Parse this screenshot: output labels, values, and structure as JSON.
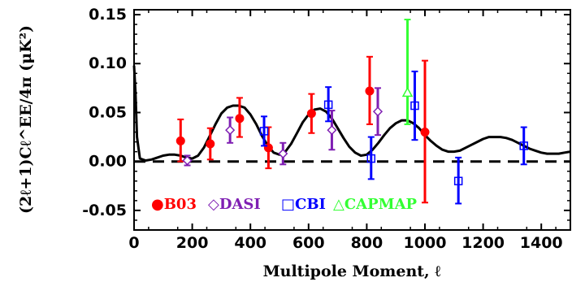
{
  "chart_data": {
    "type": "scatter",
    "xlabel": "Multipole Moment, ℓ",
    "ylabel": "(2ℓ+1)Cℓ^EE/4π (μK²)",
    "xlim": [
      0,
      1500
    ],
    "ylim": [
      -0.07,
      0.155
    ],
    "x_ticks": [
      "0",
      "200",
      "400",
      "600",
      "800",
      "1000",
      "1200",
      "1400"
    ],
    "y_ticks": [
      "0.15",
      "0.10",
      "0.05",
      "0.00",
      "-0.05"
    ],
    "zero_line": "dashed",
    "model_curve": "solid",
    "series": [
      {
        "name": "B03",
        "color": "#ff0000",
        "marker": "filled-circle",
        "points": [
          {
            "x": 160,
            "y": 0.021,
            "lo": 0.0,
            "hi": 0.043
          },
          {
            "x": 262,
            "y": 0.018,
            "lo": 0.002,
            "hi": 0.034
          },
          {
            "x": 363,
            "y": 0.044,
            "lo": 0.025,
            "hi": 0.065
          },
          {
            "x": 462,
            "y": 0.014,
            "lo": -0.007,
            "hi": 0.035
          },
          {
            "x": 610,
            "y": 0.049,
            "lo": 0.029,
            "hi": 0.069
          },
          {
            "x": 810,
            "y": 0.072,
            "lo": 0.038,
            "hi": 0.107
          },
          {
            "x": 1000,
            "y": 0.03,
            "lo": -0.042,
            "hi": 0.103
          }
        ]
      },
      {
        "name": "DASI",
        "color": "#7f1fb3",
        "marker": "diamond",
        "points": [
          {
            "x": 183,
            "y": 0.001,
            "lo": -0.004,
            "hi": 0.006
          },
          {
            "x": 330,
            "y": 0.032,
            "lo": 0.019,
            "hi": 0.045
          },
          {
            "x": 512,
            "y": 0.008,
            "lo": -0.003,
            "hi": 0.019
          },
          {
            "x": 680,
            "y": 0.032,
            "lo": 0.012,
            "hi": 0.052
          },
          {
            "x": 838,
            "y": 0.051,
            "lo": 0.027,
            "hi": 0.075
          }
        ]
      },
      {
        "name": "CBI",
        "color": "#0000ff",
        "marker": "open-square",
        "points": [
          {
            "x": 447,
            "y": 0.031,
            "lo": 0.016,
            "hi": 0.046
          },
          {
            "x": 668,
            "y": 0.058,
            "lo": 0.041,
            "hi": 0.076
          },
          {
            "x": 815,
            "y": 0.003,
            "lo": -0.018,
            "hi": 0.025
          },
          {
            "x": 965,
            "y": 0.057,
            "lo": 0.022,
            "hi": 0.092
          },
          {
            "x": 1115,
            "y": -0.02,
            "lo": -0.043,
            "hi": 0.004
          },
          {
            "x": 1340,
            "y": 0.016,
            "lo": -0.003,
            "hi": 0.035
          }
        ]
      },
      {
        "name": "CAPMAP",
        "color": "#33ff33",
        "marker": "open-triangle",
        "points": [
          {
            "x": 940,
            "y": 0.07,
            "lo": 0.038,
            "hi": 0.145
          }
        ]
      }
    ],
    "model": {
      "x": [
        0,
        5,
        10,
        20,
        40,
        60,
        80,
        100,
        120,
        140,
        160,
        180,
        200,
        220,
        240,
        260,
        280,
        300,
        320,
        340,
        360,
        380,
        400,
        420,
        440,
        460,
        480,
        500,
        520,
        540,
        560,
        580,
        600,
        620,
        640,
        660,
        680,
        700,
        720,
        740,
        760,
        780,
        800,
        820,
        840,
        860,
        880,
        900,
        920,
        940,
        960,
        980,
        1000,
        1020,
        1040,
        1060,
        1080,
        1100,
        1120,
        1140,
        1160,
        1180,
        1200,
        1220,
        1240,
        1260,
        1280,
        1300,
        1320,
        1340,
        1360,
        1380,
        1400,
        1420,
        1440,
        1460,
        1480,
        1500
      ],
      "y": [
        0.098,
        0.07,
        0.025,
        0.003,
        0.001,
        0.002,
        0.004,
        0.006,
        0.007,
        0.007,
        0.006,
        0.004,
        0.003,
        0.006,
        0.014,
        0.026,
        0.038,
        0.049,
        0.055,
        0.057,
        0.057,
        0.055,
        0.048,
        0.038,
        0.026,
        0.016,
        0.009,
        0.007,
        0.01,
        0.018,
        0.029,
        0.04,
        0.048,
        0.053,
        0.054,
        0.051,
        0.044,
        0.034,
        0.024,
        0.015,
        0.009,
        0.006,
        0.007,
        0.012,
        0.019,
        0.027,
        0.034,
        0.039,
        0.042,
        0.042,
        0.039,
        0.034,
        0.027,
        0.021,
        0.016,
        0.012,
        0.01,
        0.01,
        0.011,
        0.014,
        0.017,
        0.02,
        0.023,
        0.025,
        0.025,
        0.025,
        0.024,
        0.022,
        0.019,
        0.016,
        0.013,
        0.011,
        0.009,
        0.008,
        0.008,
        0.008,
        0.009,
        0.01
      ]
    },
    "legend": {
      "placement": "bottom-left",
      "entries": [
        {
          "symbol": "●",
          "label": "B03",
          "color": "#ff0000"
        },
        {
          "symbol": "◇",
          "label": "DASI",
          "color": "#7f1fb3"
        },
        {
          "symbol": "□",
          "label": "CBI",
          "color": "#0000ff"
        },
        {
          "symbol": "△",
          "label": "CAPMAP",
          "color": "#33ff33"
        }
      ]
    }
  }
}
